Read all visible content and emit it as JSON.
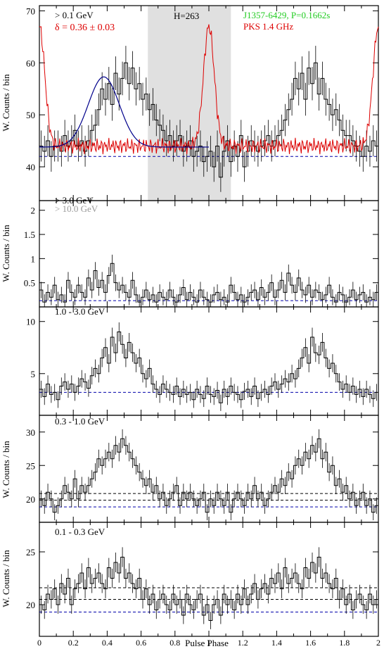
{
  "chart_data": [
    {
      "type": "line",
      "panel_label": "> 0.1 GeV",
      "ylabel": "W. Counts / bin",
      "xlim": [
        0,
        2
      ],
      "ylim": [
        33.5,
        71
      ],
      "yticks": [
        40,
        50,
        60,
        70
      ],
      "background_label": [
        42
      ],
      "off_pulse_region": [
        0.64,
        1.13
      ],
      "annotations": {
        "htest": "H=263",
        "source": "J1357-6429, P=0.1662s",
        "delta": "δ = 0.36 ± 0.03",
        "radio_label": "PKS 1.4 GHz"
      },
      "colors": {
        "gamma": "#000000",
        "radio": "#dd0000",
        "fit": "#00008b",
        "source_text": "#22cc22",
        "shade": "#e0e0e0"
      },
      "series": [
        {
          "name": "gamma",
          "style": "histogram",
          "values": [
            44,
            43,
            45,
            42,
            44,
            44,
            43,
            46,
            44,
            45,
            47,
            44,
            45,
            43,
            45,
            47,
            48,
            51,
            55,
            53,
            56,
            52,
            58,
            54,
            57,
            60,
            56,
            59,
            55,
            56,
            53,
            54,
            51,
            52,
            49,
            48,
            47,
            45,
            46,
            44,
            45,
            46,
            43,
            44,
            45,
            42,
            43,
            44,
            41,
            42,
            43,
            40,
            44,
            38,
            43,
            45,
            41,
            44,
            42,
            46,
            40,
            43,
            45,
            44,
            43,
            44,
            45,
            46,
            44,
            45,
            46,
            47,
            49,
            51,
            53,
            57,
            55,
            58,
            53,
            59,
            56,
            60,
            54,
            57,
            53,
            52,
            50,
            51,
            49,
            47,
            46,
            46,
            45,
            44,
            43,
            42,
            44,
            43,
            45,
            44
          ]
        },
        {
          "name": "radio",
          "style": "line"
        },
        {
          "name": "fit",
          "style": "line"
        }
      ]
    },
    {
      "type": "line",
      "panel_label": "> 3.0 GeV",
      "panel_label2": "> 10.0 GeV",
      "ylabel": "W. Counts / bin",
      "xlim": [
        0,
        2
      ],
      "ylim": [
        0,
        2.2
      ],
      "yticks": [
        0.5,
        1,
        1.5,
        2
      ],
      "background_label": [
        0.13
      ],
      "colors": {
        "label2": "#999999"
      },
      "series": [
        {
          "name": "gamma",
          "style": "histogram",
          "values": [
            0.35,
            0.1,
            0.3,
            0.2,
            0.45,
            0.15,
            0.25,
            0.1,
            0.55,
            0.3,
            0.2,
            0.45,
            0.3,
            0.2,
            0.6,
            0.35,
            0.75,
            0.4,
            0.55,
            0.3,
            0.65,
            0.9,
            0.5,
            0.35,
            0.45,
            0.3,
            0.2,
            0.55,
            0.25,
            0.1,
            0.2,
            0.35,
            0.15,
            0.25,
            0.1,
            0.3,
            0.2,
            0.15,
            0.35,
            0.2,
            0.1,
            0.25,
            0.4,
            0.15,
            0.3,
            0.2,
            0.1,
            0.35,
            0.2,
            0.15,
            0.1,
            0.25,
            0.3,
            0.15,
            0.2,
            0.1,
            0.45,
            0.3,
            0.15,
            0.25,
            0.1,
            0.2,
            0.3,
            0.35,
            0.15,
            0.4,
            0.2,
            0.3,
            0.5,
            0.2,
            0.35,
            0.55,
            0.3,
            0.7,
            0.45,
            0.3,
            0.6,
            0.35,
            0.25,
            0.45,
            0.2,
            0.35,
            0.3,
            0.15,
            0.25,
            0.45,
            0.2,
            0.1,
            0.3,
            0.25,
            0.1,
            0.2,
            0.35,
            0.15,
            0.25,
            0.3,
            0.1,
            0.2,
            0.15,
            0.3
          ]
        }
      ]
    },
    {
      "type": "line",
      "panel_label": "1.0 - 3.0 GeV",
      "ylabel": "",
      "xlim": [
        0,
        2
      ],
      "ylim": [
        1,
        11.4
      ],
      "yticks": [
        5,
        10
      ],
      "background_label": [
        3.2
      ],
      "series": [
        {
          "name": "gamma",
          "style": "histogram",
          "values": [
            3.5,
            2.8,
            4,
            3,
            3.2,
            2.5,
            3.8,
            4.2,
            3.5,
            4,
            3.2,
            3.8,
            4.5,
            4.2,
            3.6,
            4.8,
            5.5,
            5,
            6.5,
            7.5,
            6,
            8.5,
            7,
            9,
            7.8,
            6.5,
            8,
            7,
            6,
            6.5,
            5,
            4.5,
            5.5,
            4,
            3.5,
            3,
            4,
            3.5,
            3.2,
            3,
            3.8,
            2.8,
            3.5,
            3,
            3.2,
            2.5,
            3.5,
            3,
            2.6,
            3.8,
            3,
            2.8,
            3.4,
            2.2,
            3.5,
            2.8,
            3.8,
            3.2,
            3,
            2.5,
            3.3,
            3.5,
            2.8,
            3.8,
            2.6,
            3.2,
            3.5,
            3,
            3.8,
            4.2,
            3.5,
            4,
            4.5,
            4.2,
            5,
            4.5,
            5.5,
            6.5,
            7.5,
            6,
            8.5,
            7,
            6.8,
            8,
            6.5,
            5.5,
            6,
            5,
            4.2,
            3.5,
            4,
            3.2,
            3.8,
            3,
            3.5,
            2.8,
            3.5,
            3,
            2.6,
            3.2
          ]
        }
      ]
    },
    {
      "type": "line",
      "panel_label": "0.3 - 1.0 GeV",
      "ylabel": "W. Counts / bin",
      "xlim": [
        0,
        2
      ],
      "ylim": [
        16.5,
        32.5
      ],
      "yticks": [
        20,
        25,
        30
      ],
      "background_label": [
        18.8,
        19.8,
        20.8
      ],
      "series": [
        {
          "name": "gamma",
          "style": "histogram",
          "values": [
            20,
            19,
            21,
            20,
            18,
            19,
            20,
            22,
            21,
            20,
            23,
            20,
            22,
            21,
            22,
            23,
            24,
            26,
            25,
            26,
            27,
            26,
            28,
            27,
            29,
            28,
            27,
            26,
            25,
            24,
            23,
            22,
            23,
            21,
            22,
            20,
            21,
            19,
            20,
            21,
            22,
            19,
            21,
            20,
            21,
            20,
            19,
            20,
            21,
            18,
            20,
            19,
            21,
            20,
            19,
            21,
            18,
            20,
            21,
            20,
            19,
            21,
            20,
            22,
            20,
            21,
            19,
            20,
            21,
            22,
            21,
            23,
            22,
            24,
            23,
            25,
            26,
            25,
            27,
            26,
            28,
            27,
            29,
            26,
            27,
            24,
            25,
            22,
            23,
            21,
            22,
            20,
            21,
            19,
            20,
            21,
            19,
            20,
            18,
            19
          ]
        }
      ]
    },
    {
      "type": "line",
      "panel_label": "0.1 - 0.3 GeV",
      "ylabel": "W. Counts / bin",
      "xlabel": "Pulse Phase",
      "xlim": [
        0,
        2
      ],
      "ylim": [
        17,
        27.8
      ],
      "yticks": [
        20,
        25
      ],
      "xticks": [
        0,
        0.2,
        0.4,
        0.6,
        0.8,
        1,
        1.2,
        1.4,
        1.6,
        1.8,
        2
      ],
      "background_label": [
        19.3,
        20.5,
        21.6
      ],
      "series": [
        {
          "name": "gamma",
          "style": "histogram",
          "values": [
            20,
            19.5,
            21,
            20.5,
            21.5,
            20,
            22,
            21,
            22.5,
            20,
            21.5,
            22,
            23,
            21.5,
            23.5,
            22,
            22.5,
            23,
            22,
            21.5,
            23.5,
            22.5,
            24,
            23,
            24.5,
            22.5,
            23,
            22,
            21.5,
            22.5,
            20.5,
            21.5,
            20,
            21,
            19.5,
            20.5,
            21,
            20,
            19.5,
            21,
            20,
            20.5,
            19,
            21,
            20,
            19.5,
            20.5,
            21,
            19,
            20,
            18.5,
            20,
            20.5,
            19,
            21,
            20,
            20.5,
            19.5,
            21,
            20,
            21.5,
            20,
            21,
            22,
            20.5,
            21.5,
            22,
            21,
            22.5,
            22,
            23,
            21.5,
            23.5,
            22,
            22.5,
            23,
            22,
            21.5,
            23.5,
            22.5,
            24,
            23,
            24.5,
            22.5,
            23,
            22,
            21.5,
            22.5,
            20.5,
            21.5,
            20,
            21,
            19.5,
            20.5,
            21,
            20,
            19.5,
            21,
            20,
            20.5
          ]
        }
      ]
    }
  ]
}
